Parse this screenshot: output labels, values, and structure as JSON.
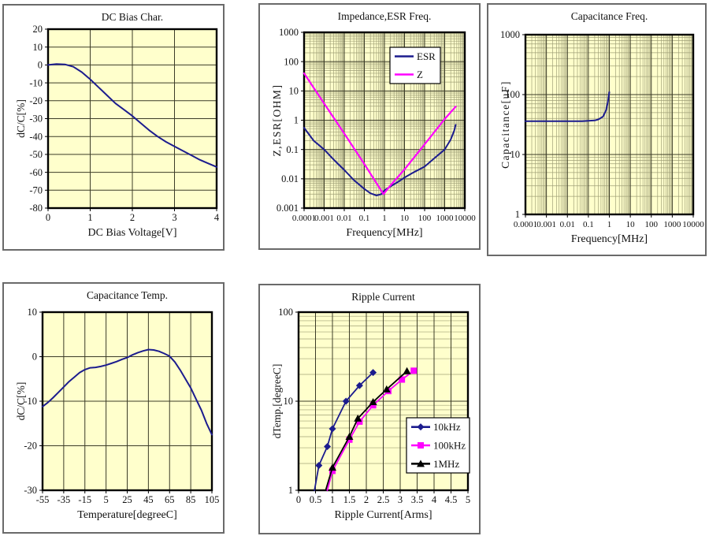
{
  "page": {
    "background": "#ffffff"
  },
  "theme": {
    "panel_bg": "#ffffff",
    "panel_border": "#6a6a6a",
    "plot_bg": "#ffffcc",
    "plot_frame": "#000000",
    "grid_major": "#3c3c28",
    "grid_minor": "#a0a078",
    "text": "#111111",
    "navy": "#1c1c8e",
    "magenta": "#ff00ff",
    "black": "#000000"
  },
  "chart_data": [
    {
      "id": "dc-bias",
      "type": "line",
      "title": "DC Bias Char.",
      "xlabel": "DC Bias Voltage[V]",
      "ylabel": "dC/C[%]",
      "xscale": "linear",
      "yscale": "linear",
      "xlim": [
        0,
        4
      ],
      "ylim": [
        -80,
        20
      ],
      "xticks": [
        0,
        1,
        2,
        3,
        4
      ],
      "xtick_labels": [
        "0",
        "1",
        "2",
        "3",
        "4"
      ],
      "yticks": [
        20,
        10,
        0,
        -10,
        -20,
        -30,
        -40,
        -50,
        -60,
        -70,
        -80
      ],
      "ytick_labels": [
        "20",
        "10",
        "0",
        "-10",
        "-20",
        "-30",
        "-40",
        "-50",
        "-60",
        "-70",
        "-80"
      ],
      "grid": "major",
      "legend": false,
      "series": [
        {
          "name": "dC/C",
          "color": "navy",
          "marker": "none",
          "width": 2,
          "x": [
            0,
            0.2,
            0.4,
            0.6,
            0.8,
            1.0,
            1.2,
            1.4,
            1.6,
            1.8,
            2.0,
            2.2,
            2.4,
            2.6,
            2.8,
            3.0,
            3.2,
            3.4,
            3.6,
            3.8,
            4.0
          ],
          "y": [
            0,
            0.5,
            0.3,
            -1,
            -4,
            -8,
            -12.5,
            -17,
            -21.5,
            -25,
            -28.5,
            -32.5,
            -36.5,
            -40,
            -43,
            -45.5,
            -48,
            -50.5,
            -53,
            -55,
            -57
          ]
        }
      ]
    },
    {
      "id": "imp-esr",
      "type": "line",
      "title": "Impedance,ESR Freq.",
      "xlabel": "Frequency[MHz]",
      "ylabel": "Z,ESR[OHM]",
      "xscale": "log",
      "yscale": "log",
      "xlim": [
        0.0001,
        10000
      ],
      "ylim": [
        0.001,
        1000
      ],
      "xticks": [
        0.0001,
        0.001,
        0.01,
        0.1,
        1,
        10,
        100,
        1000,
        10000
      ],
      "xtick_labels": [
        "0.0001",
        "0.001",
        "0.01",
        "0.1",
        "1",
        "10",
        "100",
        "1000",
        "10000"
      ],
      "yticks": [
        1000,
        100,
        10,
        1,
        0.1,
        0.01,
        0.001
      ],
      "ytick_labels": [
        "1000",
        "100",
        "10",
        "1",
        "0.1",
        "0.01",
        "0.001"
      ],
      "grid": "major+minor",
      "legend": true,
      "series": [
        {
          "name": "ESR",
          "color": "navy",
          "marker": "none",
          "width": 2,
          "x": [
            0.0001,
            0.0003,
            0.001,
            0.003,
            0.01,
            0.03,
            0.1,
            0.2,
            0.4,
            0.7,
            1,
            2,
            5,
            10,
            30,
            100,
            300,
            1000,
            2000,
            3000,
            3500
          ],
          "y": [
            0.55,
            0.2,
            0.1,
            0.045,
            0.02,
            0.009,
            0.0045,
            0.0032,
            0.0027,
            0.003,
            0.004,
            0.0055,
            0.008,
            0.011,
            0.017,
            0.026,
            0.05,
            0.1,
            0.22,
            0.45,
            0.7
          ]
        },
        {
          "name": "Z",
          "color": "magenta",
          "marker": "none",
          "width": 2.2,
          "x": [
            0.0001,
            0.001,
            0.01,
            0.1,
            0.9,
            2,
            10,
            100,
            1000,
            3500
          ],
          "y": [
            40,
            3.7,
            0.35,
            0.032,
            0.003,
            0.006,
            0.021,
            0.15,
            1.1,
            2.9
          ]
        }
      ]
    },
    {
      "id": "cap-freq",
      "type": "line",
      "title": "Capacitance Freq.",
      "xlabel": "Frequency[MHz]",
      "ylabel": "Capacitance[uF]",
      "xscale": "log",
      "yscale": "log",
      "xlim": [
        0.0001,
        10000
      ],
      "ylim": [
        1,
        1000
      ],
      "xticks": [
        0.0001,
        0.001,
        0.01,
        0.1,
        1,
        10,
        100,
        1000,
        10000
      ],
      "xtick_labels": [
        "0.0001",
        "0.001",
        "0.01",
        "0.1",
        "1",
        "10",
        "100",
        "1000",
        "10000"
      ],
      "yticks": [
        1000,
        100,
        10,
        1
      ],
      "ytick_labels": [
        "1000",
        "100",
        "10",
        "1"
      ],
      "grid": "major+minor",
      "legend": false,
      "series": [
        {
          "name": "Capacitance",
          "color": "navy",
          "marker": "none",
          "width": 2,
          "x": [
            0.0001,
            0.001,
            0.01,
            0.05,
            0.1,
            0.2,
            0.3,
            0.5,
            0.7,
            0.85,
            1.0
          ],
          "y": [
            36,
            36,
            36,
            36,
            36.5,
            37,
            38.5,
            43,
            55,
            75,
            110
          ]
        }
      ]
    },
    {
      "id": "cap-temp",
      "type": "line",
      "title": "Capacitance Temp.",
      "xlabel": "Temperature[degreeC]",
      "ylabel": "dC/C[%]",
      "xscale": "linear",
      "yscale": "linear",
      "xlim": [
        -55,
        105
      ],
      "ylim": [
        -30,
        10
      ],
      "xticks": [
        -55,
        -35,
        -15,
        5,
        25,
        45,
        65,
        85,
        105
      ],
      "xtick_labels": [
        "-55",
        "-35",
        "-15",
        "5",
        "25",
        "45",
        "65",
        "85",
        "105"
      ],
      "yticks": [
        10,
        0,
        -10,
        -20,
        -30
      ],
      "ytick_labels": [
        "10",
        "0",
        "-10",
        "-20",
        "-30"
      ],
      "grid": "major",
      "legend": false,
      "series": [
        {
          "name": "dC/C",
          "color": "navy",
          "marker": "none",
          "width": 2,
          "x": [
            -55,
            -50,
            -45,
            -40,
            -35,
            -30,
            -25,
            -20,
            -15,
            -10,
            -5,
            0,
            5,
            10,
            15,
            20,
            25,
            30,
            35,
            40,
            45,
            50,
            55,
            60,
            65,
            70,
            75,
            80,
            85,
            90,
            95,
            100,
            105
          ],
          "y": [
            -11.2,
            -10.3,
            -9.2,
            -8,
            -6.8,
            -5.6,
            -4.6,
            -3.6,
            -2.9,
            -2.5,
            -2.4,
            -2.2,
            -1.9,
            -1.5,
            -1.1,
            -0.6,
            -0.2,
            0.4,
            0.9,
            1.3,
            1.6,
            1.5,
            1.2,
            0.7,
            0.1,
            -1.2,
            -3,
            -5,
            -7,
            -9.5,
            -12,
            -15,
            -17.5
          ]
        }
      ]
    },
    {
      "id": "ripple",
      "type": "line",
      "title": "Ripple Current",
      "xlabel": "Ripple Current[Arms]",
      "ylabel": "dTemp.[degreeC]",
      "xscale": "linear",
      "yscale": "log",
      "xlim": [
        0,
        5
      ],
      "ylim": [
        1,
        100
      ],
      "xticks": [
        0,
        0.5,
        1,
        1.5,
        2,
        2.5,
        3,
        3.5,
        4,
        4.5,
        5
      ],
      "xtick_labels": [
        "0",
        "0.5",
        "1",
        "1.5",
        "2",
        "2.5",
        "3",
        "3.5",
        "4",
        "4.5",
        "5"
      ],
      "yticks": [
        100,
        10,
        1
      ],
      "ytick_labels": [
        "100",
        "10",
        "1"
      ],
      "grid": "major+minor",
      "legend": true,
      "series": [
        {
          "name": "10kHz",
          "color": "navy",
          "marker": "diamond",
          "width": 1.8,
          "line_start": [
            [
              0.47,
              1
            ]
          ],
          "x": [
            0.6,
            0.85,
            1.0,
            1.4,
            1.8,
            2.2
          ],
          "y": [
            1.9,
            3.1,
            4.9,
            10,
            15,
            21
          ]
        },
        {
          "name": "100kHz",
          "color": "magenta",
          "marker": "square",
          "width": 1.8,
          "line_start": [
            [
              0.85,
              1
            ]
          ],
          "x": [
            1.0,
            1.5,
            1.8,
            2.2,
            2.65,
            3.05,
            3.4
          ],
          "y": [
            1.65,
            3.7,
            5.9,
            9,
            13,
            17.5,
            22
          ]
        },
        {
          "name": "1MHz",
          "color": "black",
          "marker": "triangle",
          "width": 1.8,
          "line_start": [
            [
              0.8,
              1
            ]
          ],
          "x": [
            1.0,
            1.5,
            1.75,
            2.2,
            2.6,
            3.2
          ],
          "y": [
            1.8,
            4.0,
            6.4,
            9.8,
            13.6,
            21.8
          ]
        }
      ]
    }
  ]
}
